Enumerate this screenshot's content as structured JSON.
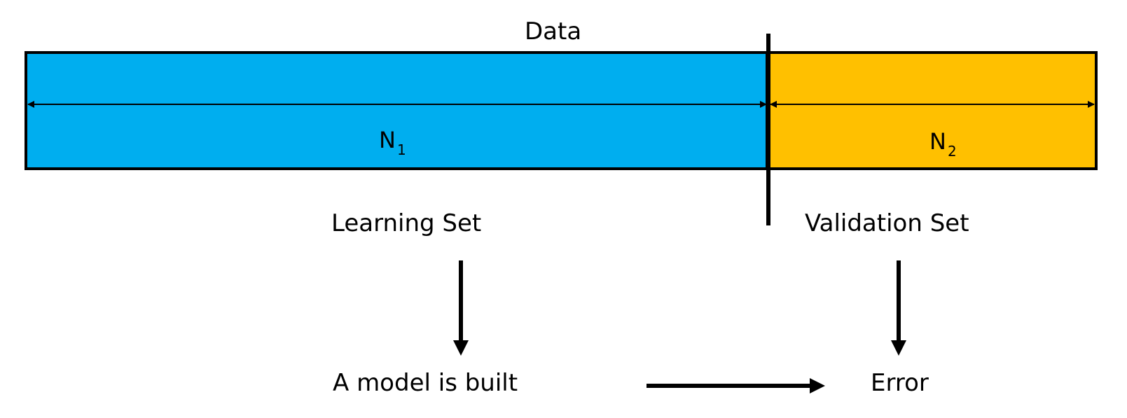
{
  "title": "Data",
  "colors": {
    "learning_fill": "#00AEEF",
    "validation_fill": "#FFC000",
    "stroke": "#000000"
  },
  "segments": {
    "learning": {
      "n_symbol": "N",
      "n_subscript": "1",
      "label": "Learning Set"
    },
    "validation": {
      "n_symbol": "N",
      "n_subscript": "2",
      "label": "Validation Set"
    }
  },
  "steps": {
    "model": "A model is built",
    "error": "Error"
  }
}
